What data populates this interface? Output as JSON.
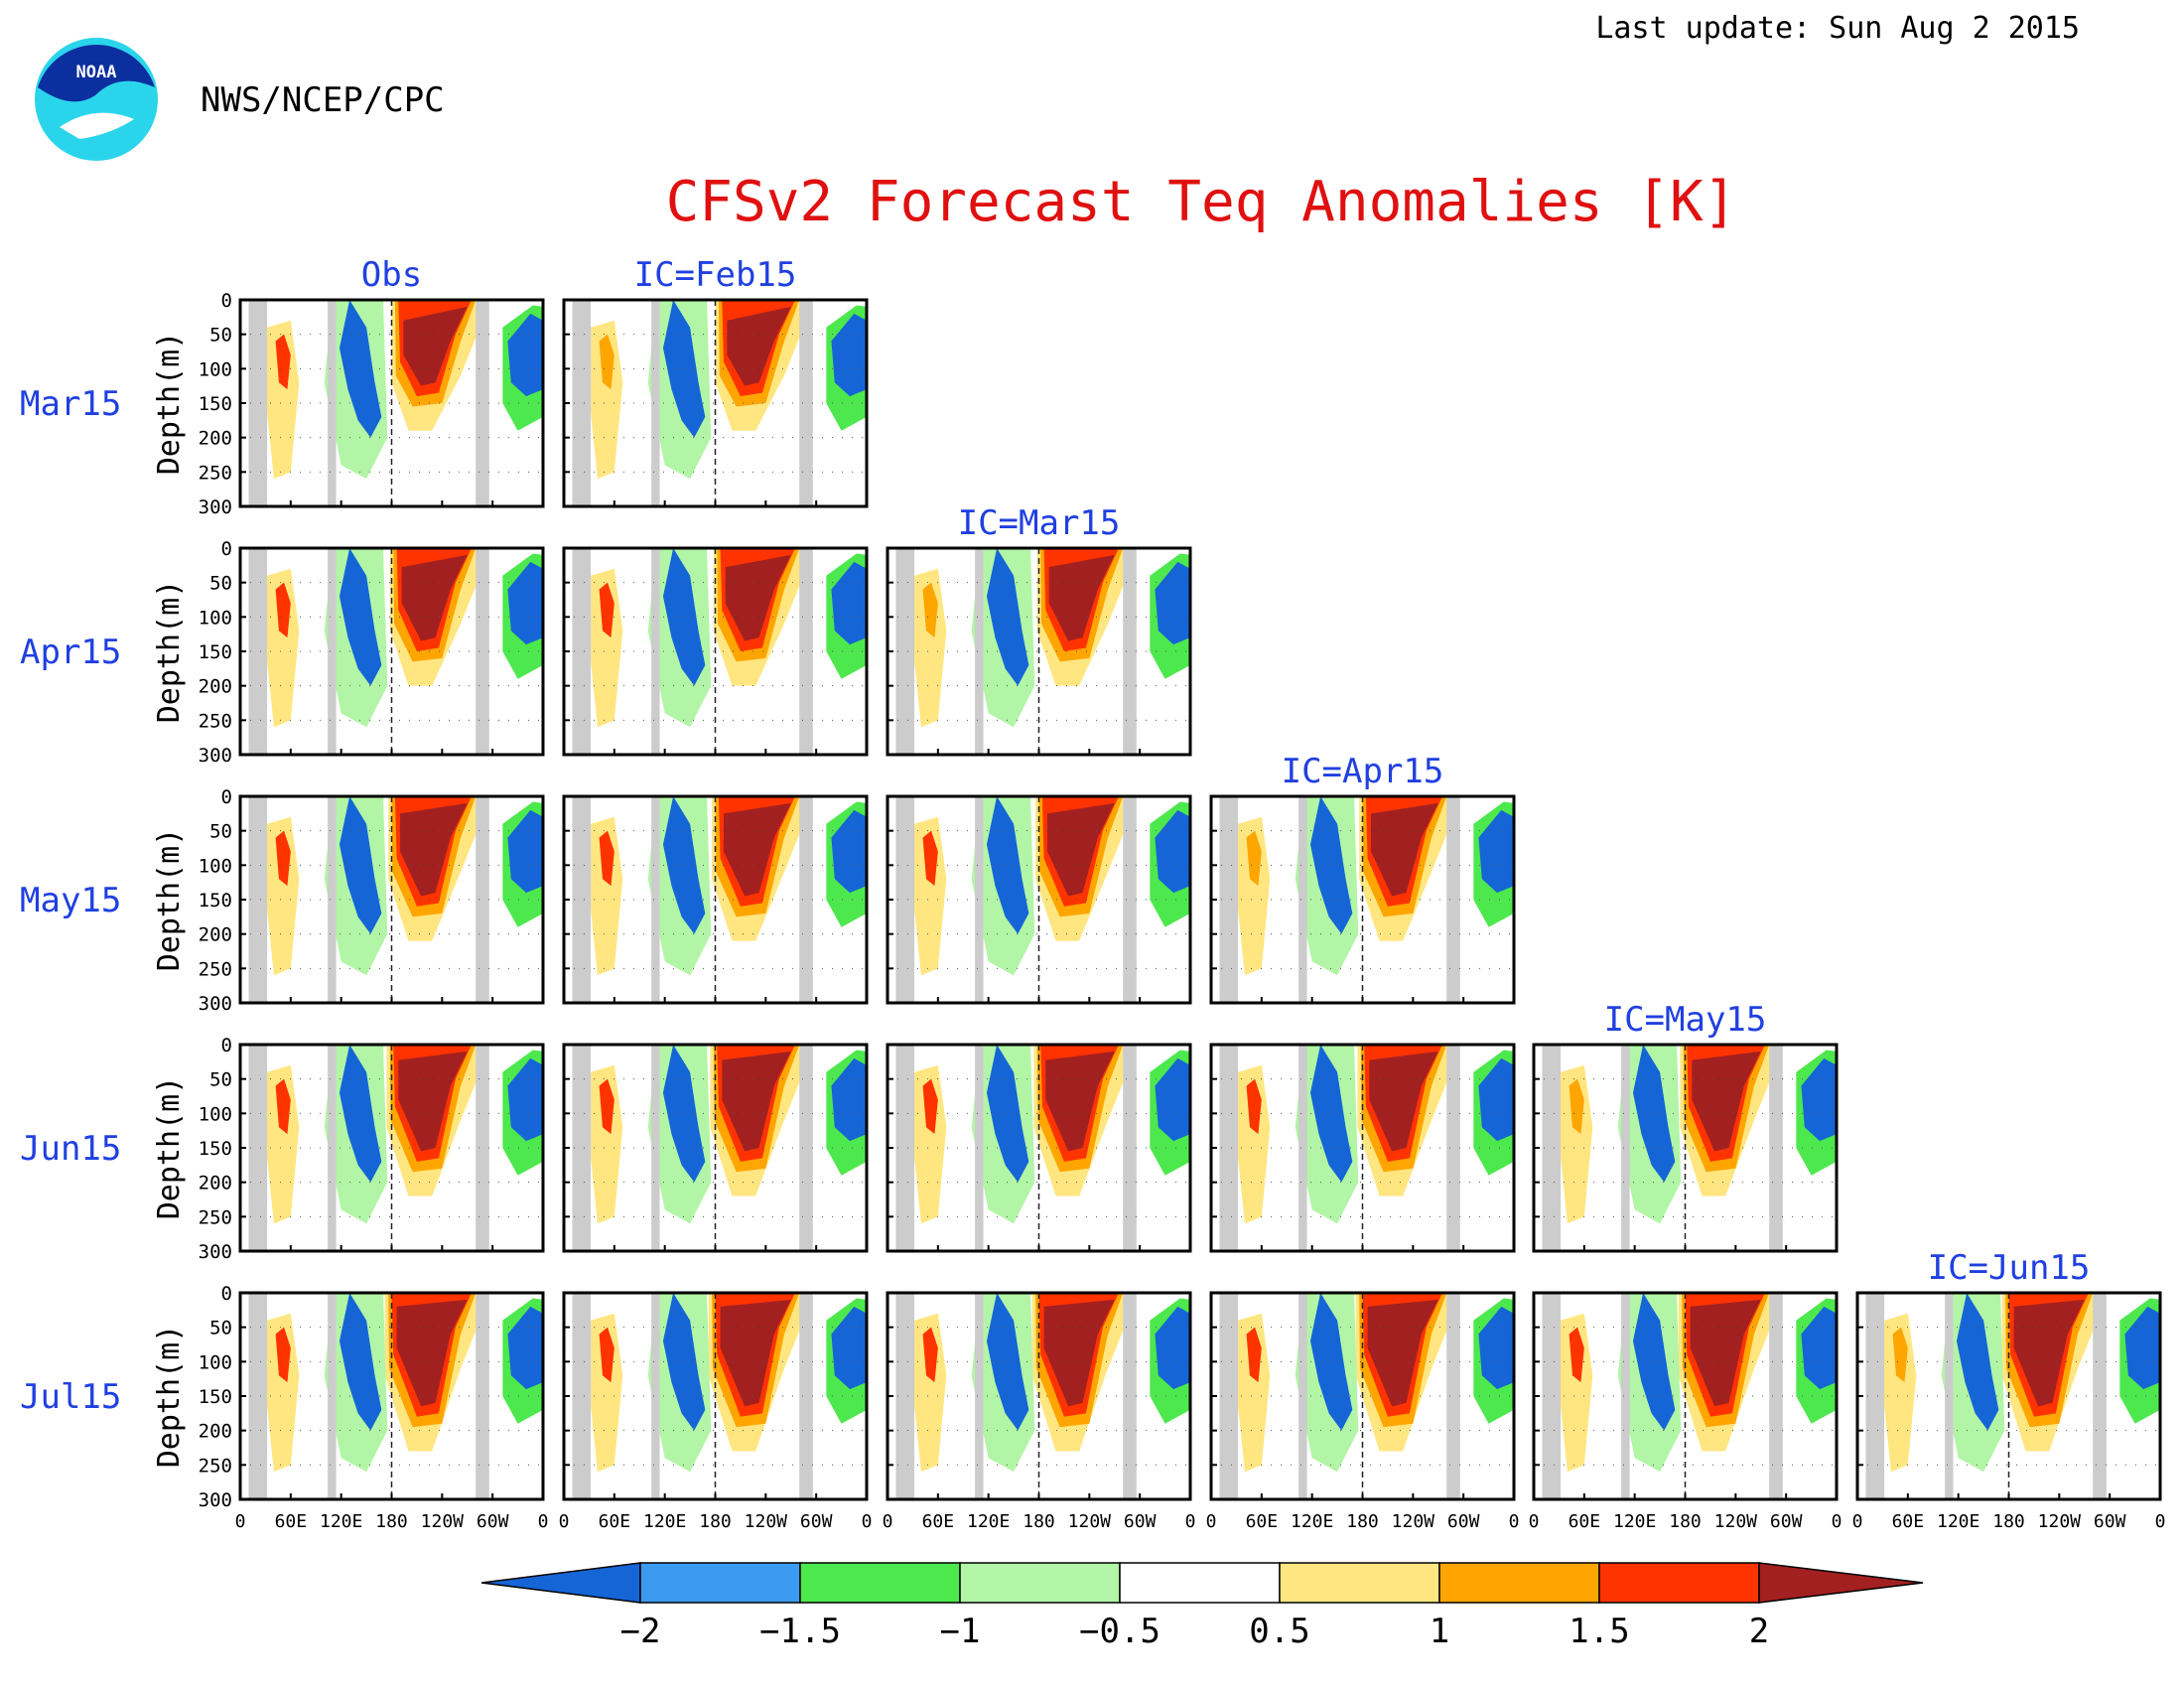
{
  "header": {
    "agency": "NWS/NCEP/CPC",
    "last_update": "Last update: Sun Aug 2 2015",
    "logo_text": "NOAA"
  },
  "chart_data": {
    "type": "heatmap",
    "title": "CFSv2 Forecast Teq Anomalies [K]",
    "ylabel": "Depth(m)",
    "y_ticks": [
      0,
      50,
      100,
      150,
      200,
      250,
      300
    ],
    "x_ticks": [
      "0",
      "60E",
      "120E",
      "180",
      "120W",
      "60W",
      "0"
    ],
    "ylim": [
      0,
      300
    ],
    "x_range": [
      0,
      360
    ],
    "rows": [
      "Mar15",
      "Apr15",
      "May15",
      "Jun15",
      "Jul15"
    ],
    "columns": [
      "Obs",
      "IC=Feb15",
      "IC=Mar15",
      "IC=Apr15",
      "IC=May15",
      "IC=Jun15"
    ],
    "colorbar": {
      "ticks": [
        "−2",
        "−1.5",
        "−1",
        "−0.5",
        "0.5",
        "1",
        "1.5",
        "2"
      ],
      "colors": [
        "#1565d6",
        "#3c9bf0",
        "#4de84d",
        "#b2f5a6",
        "#ffffff",
        "#ffe680",
        "#ffa500",
        "#ff3300",
        "#a32020"
      ]
    },
    "colors": {
      "title": "#e01010",
      "labels": "#2040e0",
      "land": "#cccccc"
    }
  }
}
